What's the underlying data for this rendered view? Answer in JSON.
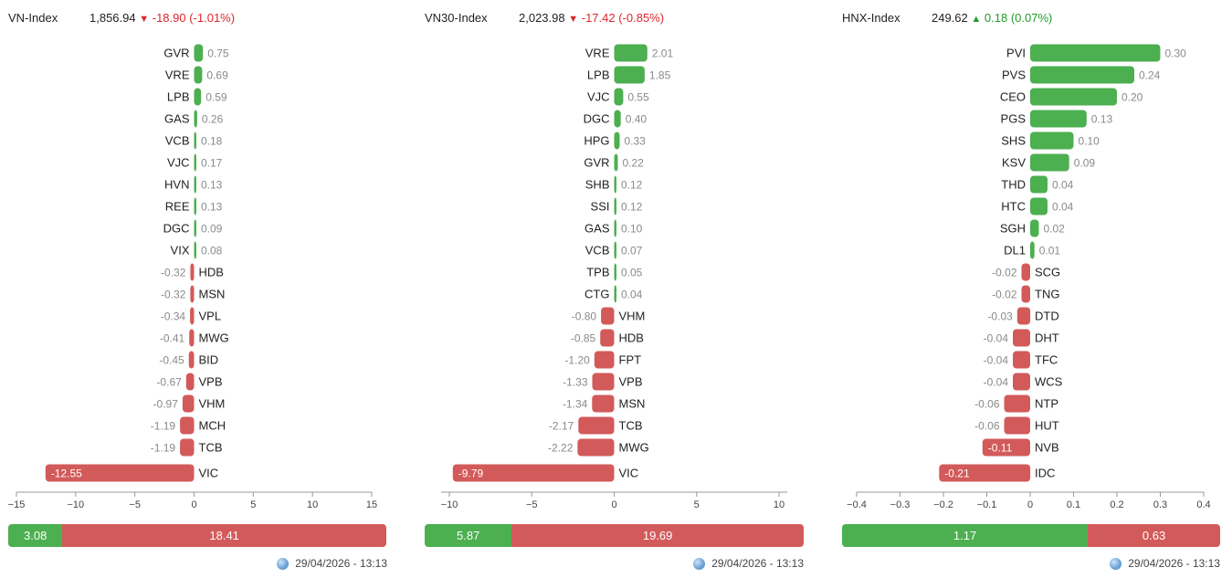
{
  "timestamp": "29/04/2026 - 13:13",
  "colors": {
    "up": "#4caf50",
    "down": "#d35a5a",
    "up_text": "#1e9e2a",
    "down_text": "#e0252b"
  },
  "chart_data": [
    {
      "type": "bar",
      "orientation": "horizontal",
      "index_name": "VN-Index",
      "index_value": "1,856.94",
      "change": "-18.90 (-1.01%)",
      "direction": "down",
      "arrow": "▼",
      "categories": [
        "GVR",
        "VRE",
        "LPB",
        "GAS",
        "VCB",
        "VJC",
        "HVN",
        "REE",
        "DGC",
        "VIX",
        "HDB",
        "MSN",
        "VPL",
        "MWG",
        "BID",
        "VPB",
        "VHM",
        "MCH",
        "TCB",
        "VIC"
      ],
      "values": [
        0.75,
        0.69,
        0.59,
        0.26,
        0.18,
        0.17,
        0.13,
        0.13,
        0.09,
        0.08,
        -0.32,
        -0.32,
        -0.34,
        -0.41,
        -0.45,
        -0.67,
        -0.97,
        -1.19,
        -1.19,
        -12.55
      ],
      "value_labels": [
        "0.75",
        "0.69",
        "0.59",
        "0.26",
        "0.18",
        "0.17",
        "0.13",
        "0.13",
        "0.09",
        "0.08",
        "-0.32",
        "-0.32",
        "-0.34",
        "-0.41",
        "-0.45",
        "-0.67",
        "-0.97",
        "-1.19",
        "-1.19",
        "-12.55"
      ],
      "xlim": [
        -15,
        15
      ],
      "ticks": [
        -15,
        -10,
        -5,
        0,
        5,
        10,
        15
      ],
      "tick_labels": [
        "−15",
        "−10",
        "−5",
        "0",
        "5",
        "10",
        "15"
      ],
      "summary": {
        "positive": 3.08,
        "negative": 18.41,
        "positive_label": "3.08",
        "negative_label": "18.41"
      }
    },
    {
      "type": "bar",
      "orientation": "horizontal",
      "index_name": "VN30-Index",
      "index_value": "2,023.98",
      "change": "-17.42 (-0.85%)",
      "direction": "down",
      "arrow": "▼",
      "categories": [
        "VRE",
        "LPB",
        "VJC",
        "DGC",
        "HPG",
        "GVR",
        "SHB",
        "SSI",
        "GAS",
        "VCB",
        "TPB",
        "CTG",
        "VHM",
        "HDB",
        "FPT",
        "VPB",
        "MSN",
        "TCB",
        "MWG",
        "VIC"
      ],
      "values": [
        2.01,
        1.85,
        0.55,
        0.4,
        0.33,
        0.22,
        0.12,
        0.12,
        0.1,
        0.07,
        0.05,
        0.04,
        -0.8,
        -0.85,
        -1.2,
        -1.33,
        -1.34,
        -2.17,
        -2.22,
        -9.79
      ],
      "value_labels": [
        "2.01",
        "1.85",
        "0.55",
        "0.40",
        "0.33",
        "0.22",
        "0.12",
        "0.12",
        "0.10",
        "0.07",
        "0.05",
        "0.04",
        "-0.80",
        "-0.85",
        "-1.20",
        "-1.33",
        "-1.34",
        "-2.17",
        "-2.22",
        "-9.79"
      ],
      "xlim": [
        -10.5,
        10.5
      ],
      "ticks": [
        -10,
        -5,
        0,
        5,
        10
      ],
      "tick_labels": [
        "−10",
        "−5",
        "0",
        "5",
        "10"
      ],
      "summary": {
        "positive": 5.87,
        "negative": 19.69,
        "positive_label": "5.87",
        "negative_label": "19.69"
      }
    },
    {
      "type": "bar",
      "orientation": "horizontal",
      "index_name": "HNX-Index",
      "index_value": "249.62",
      "change": "0.18 (0.07%)",
      "direction": "up",
      "arrow": "▲",
      "categories": [
        "PVI",
        "PVS",
        "CEO",
        "PGS",
        "SHS",
        "KSV",
        "THD",
        "HTC",
        "SGH",
        "DL1",
        "SCG",
        "TNG",
        "DTD",
        "DHT",
        "TFC",
        "WCS",
        "NTP",
        "HUT",
        "NVB",
        "IDC"
      ],
      "values": [
        0.3,
        0.24,
        0.2,
        0.13,
        0.1,
        0.09,
        0.04,
        0.04,
        0.02,
        0.01,
        -0.02,
        -0.02,
        -0.03,
        -0.04,
        -0.04,
        -0.04,
        -0.06,
        -0.06,
        -0.11,
        -0.21
      ],
      "value_labels": [
        "0.30",
        "0.24",
        "0.20",
        "0.13",
        "0.10",
        "0.09",
        "0.04",
        "0.04",
        "0.02",
        "0.01",
        "-0.02",
        "-0.02",
        "-0.03",
        "-0.04",
        "-0.04",
        "-0.04",
        "-0.06",
        "-0.06",
        "-0.11",
        "-0.21"
      ],
      "xlim": [
        -0.4,
        0.4
      ],
      "ticks": [
        -0.4,
        -0.3,
        -0.2,
        -0.1,
        0,
        0.1,
        0.2,
        0.3,
        0.4
      ],
      "tick_labels": [
        "−0.4",
        "−0.3",
        "−0.2",
        "−0.1",
        "0",
        "0.1",
        "0.2",
        "0.3",
        "0.4"
      ],
      "summary": {
        "positive": 1.17,
        "negative": 0.63,
        "positive_label": "1.17",
        "negative_label": "0.63"
      }
    }
  ]
}
